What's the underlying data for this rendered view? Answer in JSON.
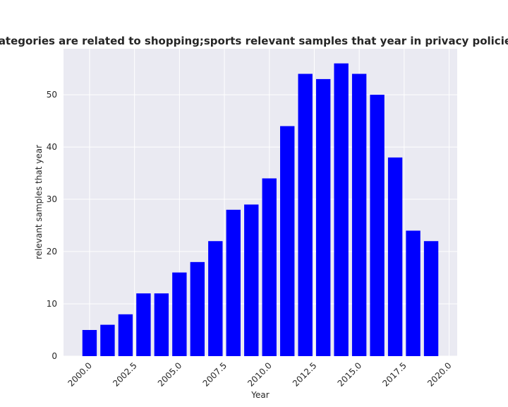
{
  "chart_data": {
    "type": "bar",
    "title": "When categories are related to shopping;sports relevant samples that year in privacy policies by year",
    "xlabel": "Year",
    "ylabel": "relevant samples that year",
    "x": [
      2000,
      2001,
      2002,
      2003,
      2004,
      2005,
      2006,
      2007,
      2008,
      2009,
      2010,
      2011,
      2012,
      2013,
      2014,
      2015,
      2016,
      2017,
      2018,
      2019
    ],
    "values": [
      5,
      6,
      8,
      12,
      12,
      16,
      18,
      22,
      28,
      29,
      34,
      44,
      54,
      53,
      56,
      54,
      50,
      38,
      24,
      22
    ],
    "xlim": [
      1998.55,
      2020.45
    ],
    "ylim": [
      0,
      58.8
    ],
    "xticks": [
      "2000.0",
      "2002.5",
      "2005.0",
      "2007.5",
      "2010.0",
      "2012.5",
      "2015.0",
      "2017.5",
      "2020.0"
    ],
    "yticks": [
      "0",
      "10",
      "20",
      "30",
      "40",
      "50"
    ],
    "bar_color": "#0000ff",
    "background": "#eaeaf2",
    "grid": true
  }
}
